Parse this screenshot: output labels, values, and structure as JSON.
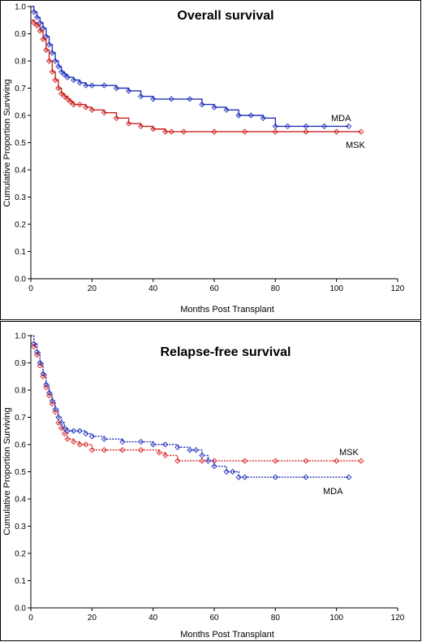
{
  "chart_data": [
    {
      "type": "line",
      "title": "Overall survival",
      "xlabel": "Months Post Transplant",
      "ylabel": "Cumulative Proportion Surviving",
      "xlim": [
        0,
        120
      ],
      "ylim": [
        0,
        1
      ],
      "xticks": [
        "0",
        "20",
        "40",
        "60",
        "80",
        "100",
        "120"
      ],
      "yticks": [
        "0.0",
        "0.1",
        "0.2",
        "0.3",
        "0.4",
        "0.5",
        "0.6",
        "0.7",
        "0.8",
        "0.9",
        "1.0"
      ],
      "grid": false,
      "series": [
        {
          "name": "MDA",
          "color": "#2233bb",
          "dashed": false,
          "x": [
            0,
            1,
            2,
            3,
            4,
            5,
            6,
            7,
            8,
            9,
            10,
            11,
            12,
            14,
            16,
            18,
            20,
            24,
            28,
            32,
            36,
            40,
            46,
            52,
            56,
            60,
            64,
            68,
            72,
            76,
            80,
            84,
            90,
            96,
            104
          ],
          "y": [
            1.0,
            0.98,
            0.96,
            0.94,
            0.92,
            0.89,
            0.86,
            0.83,
            0.8,
            0.78,
            0.76,
            0.75,
            0.74,
            0.73,
            0.72,
            0.71,
            0.71,
            0.71,
            0.7,
            0.69,
            0.67,
            0.66,
            0.66,
            0.66,
            0.64,
            0.63,
            0.62,
            0.6,
            0.6,
            0.59,
            0.56,
            0.56,
            0.56,
            0.56,
            0.56
          ]
        },
        {
          "name": "MSK",
          "color": "#cc2222",
          "dashed": false,
          "x": [
            0,
            1,
            2,
            3,
            4,
            5,
            6,
            7,
            8,
            9,
            10,
            11,
            12,
            13,
            14,
            16,
            18,
            20,
            24,
            28,
            32,
            36,
            40,
            44,
            46,
            50,
            60,
            70,
            80,
            90,
            100,
            108
          ],
          "y": [
            0.95,
            0.94,
            0.93,
            0.91,
            0.88,
            0.84,
            0.8,
            0.76,
            0.73,
            0.7,
            0.68,
            0.67,
            0.66,
            0.65,
            0.64,
            0.64,
            0.63,
            0.62,
            0.61,
            0.59,
            0.57,
            0.56,
            0.55,
            0.54,
            0.54,
            0.54,
            0.54,
            0.54,
            0.54,
            0.54,
            0.54,
            0.54
          ]
        }
      ]
    },
    {
      "type": "line",
      "title": "Relapse-free survival",
      "xlabel": "Months Post Transplant",
      "ylabel": "Cumulative Proportion Surviving",
      "xlim": [
        0,
        120
      ],
      "ylim": [
        0,
        1
      ],
      "xticks": [
        "0",
        "20",
        "40",
        "60",
        "80",
        "100",
        "120"
      ],
      "yticks": [
        "0.0",
        "0.1",
        "0.2",
        "0.3",
        "0.4",
        "0.5",
        "0.6",
        "0.7",
        "0.8",
        "0.9",
        "1.0"
      ],
      "grid": false,
      "series": [
        {
          "name": "MSK",
          "color": "#dd2222",
          "dashed": true,
          "x": [
            0,
            1,
            2,
            3,
            4,
            5,
            6,
            7,
            8,
            9,
            10,
            11,
            12,
            14,
            16,
            18,
            20,
            24,
            30,
            36,
            42,
            44,
            48,
            56,
            60,
            70,
            80,
            90,
            100,
            108
          ],
          "y": [
            1.0,
            0.96,
            0.93,
            0.89,
            0.85,
            0.81,
            0.78,
            0.75,
            0.72,
            0.68,
            0.66,
            0.64,
            0.62,
            0.61,
            0.6,
            0.6,
            0.58,
            0.58,
            0.58,
            0.58,
            0.57,
            0.56,
            0.54,
            0.54,
            0.54,
            0.54,
            0.54,
            0.54,
            0.54,
            0.54
          ]
        },
        {
          "name": "MDA",
          "color": "#2233bb",
          "dashed": true,
          "x": [
            0,
            1,
            2,
            3,
            4,
            5,
            6,
            7,
            8,
            9,
            10,
            11,
            12,
            14,
            16,
            18,
            20,
            24,
            30,
            36,
            40,
            44,
            48,
            52,
            54,
            56,
            58,
            60,
            64,
            66,
            68,
            70,
            80,
            90,
            104
          ],
          "y": [
            1.0,
            0.97,
            0.94,
            0.9,
            0.86,
            0.82,
            0.79,
            0.76,
            0.73,
            0.7,
            0.68,
            0.66,
            0.65,
            0.65,
            0.65,
            0.64,
            0.63,
            0.62,
            0.61,
            0.61,
            0.6,
            0.6,
            0.59,
            0.58,
            0.58,
            0.56,
            0.54,
            0.52,
            0.5,
            0.5,
            0.48,
            0.48,
            0.48,
            0.48,
            0.48
          ]
        }
      ]
    }
  ]
}
